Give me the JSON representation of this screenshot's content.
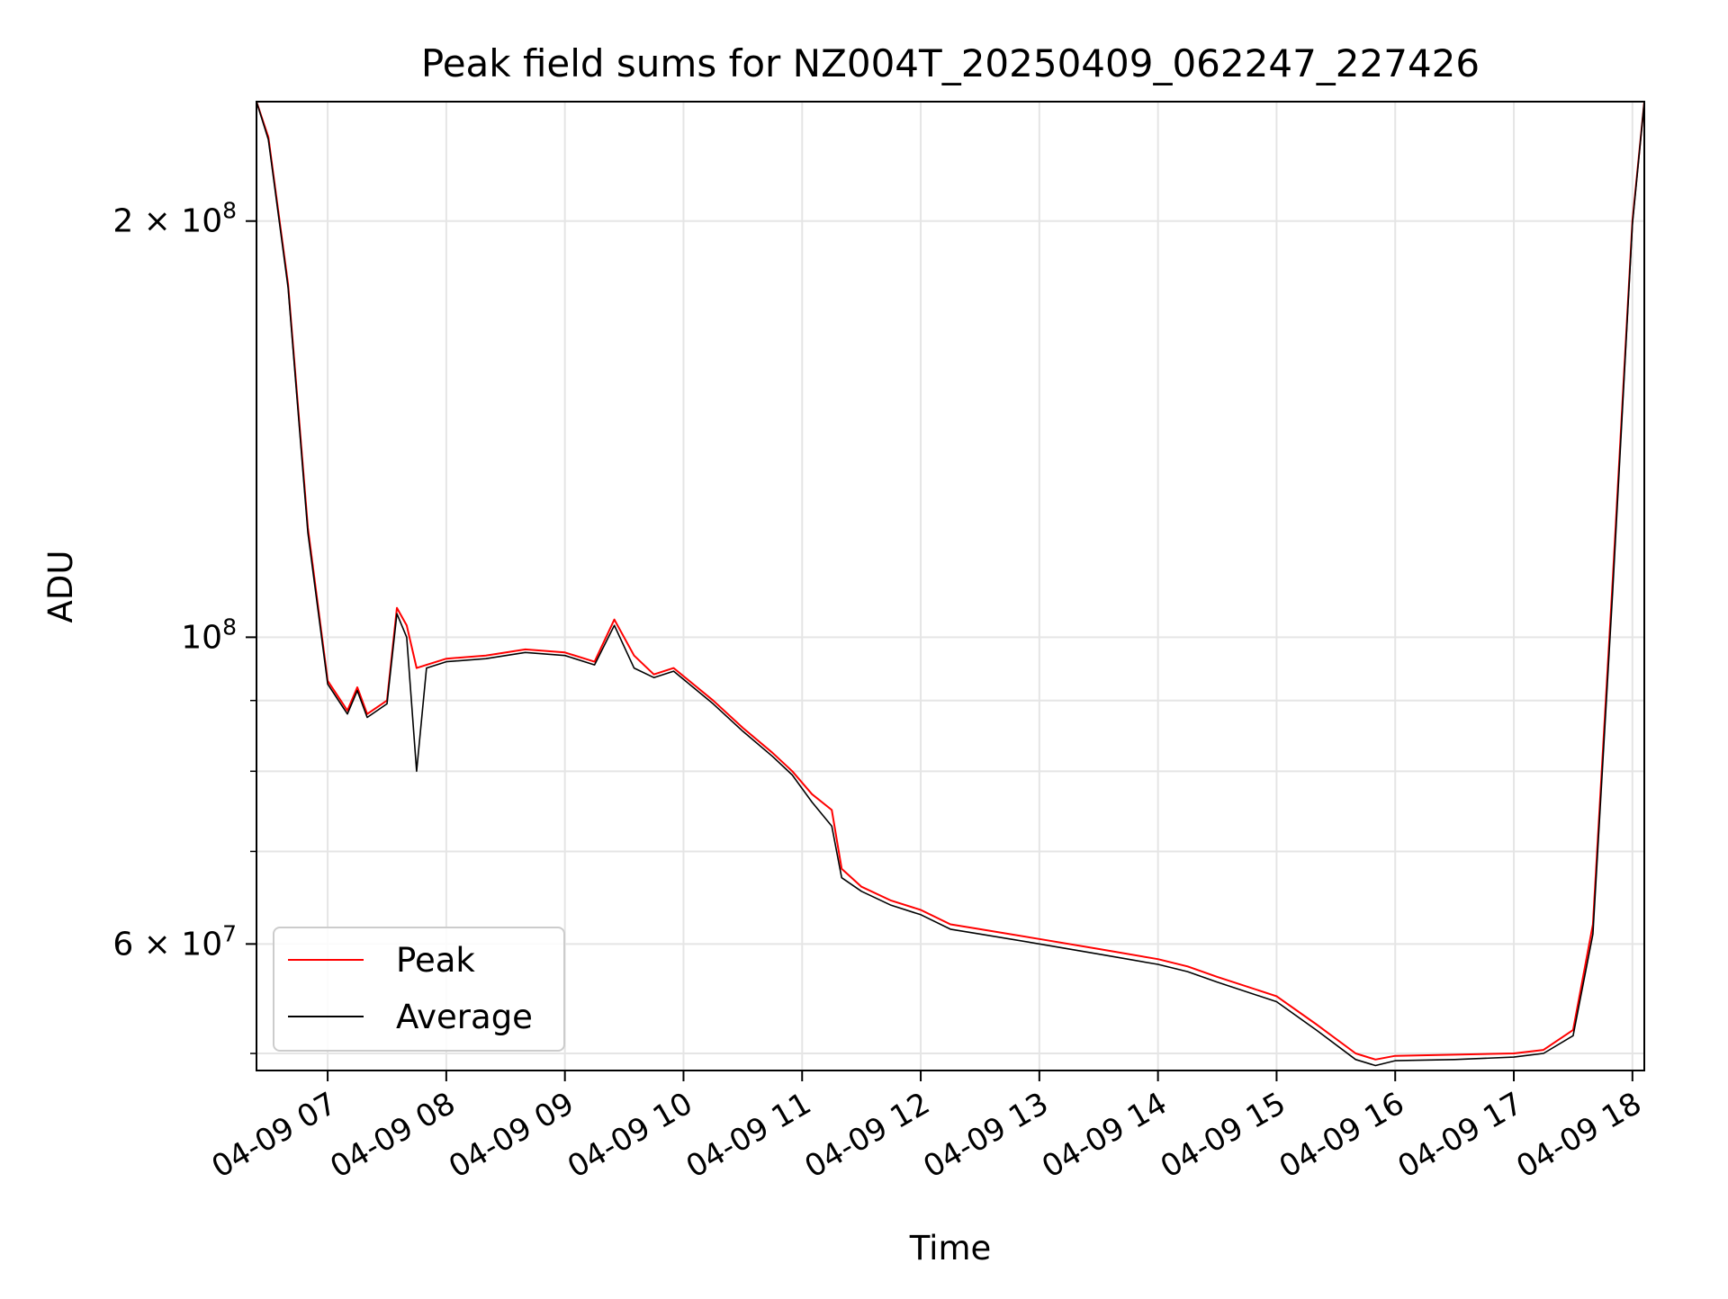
{
  "chart_data": {
    "type": "line",
    "title": "Peak field sums for NZ004T_20250409_062247_227426",
    "xlabel": "Time",
    "ylabel": "ADU",
    "yscale": "log",
    "ylim": [
      48600000,
      244000000
    ],
    "xlim": [
      "2025-04-09 06:24",
      "2025-04-09 18:06"
    ],
    "grid": true,
    "legend_position": "lower-left",
    "xticks": [
      "04-09 07",
      "04-09 08",
      "04-09 09",
      "04-09 10",
      "04-09 11",
      "04-09 12",
      "04-09 13",
      "04-09 14",
      "04-09 15",
      "04-09 16",
      "04-09 17",
      "04-09 18"
    ],
    "xtick_values": [
      "2025-04-09 07:00",
      "2025-04-09 08:00",
      "2025-04-09 09:00",
      "2025-04-09 10:00",
      "2025-04-09 11:00",
      "2025-04-09 12:00",
      "2025-04-09 13:00",
      "2025-04-09 14:00",
      "2025-04-09 15:00",
      "2025-04-09 16:00",
      "2025-04-09 17:00",
      "2025-04-09 18:00"
    ],
    "yticks_major": [
      {
        "value": 60000000,
        "mantissa": "6",
        "times": "×",
        "base": "10",
        "exp": "7"
      },
      {
        "value": 100000000,
        "mantissa": "",
        "times": "",
        "base": "10",
        "exp": "8"
      },
      {
        "value": 200000000,
        "mantissa": "2",
        "times": "×",
        "base": "10",
        "exp": "8"
      }
    ],
    "yticks_minor": [
      50000000,
      70000000,
      80000000,
      90000000
    ],
    "series": [
      {
        "name": "Peak",
        "color": "#ff0000",
        "x": [
          "2025-04-09 06:24",
          "2025-04-09 06:30",
          "2025-04-09 06:40",
          "2025-04-09 06:50",
          "2025-04-09 07:00",
          "2025-04-09 07:10",
          "2025-04-09 07:15",
          "2025-04-09 07:20",
          "2025-04-09 07:30",
          "2025-04-09 07:35",
          "2025-04-09 07:40",
          "2025-04-09 07:45",
          "2025-04-09 07:50",
          "2025-04-09 08:00",
          "2025-04-09 08:20",
          "2025-04-09 08:40",
          "2025-04-09 09:00",
          "2025-04-09 09:15",
          "2025-04-09 09:25",
          "2025-04-09 09:35",
          "2025-04-09 09:45",
          "2025-04-09 09:55",
          "2025-04-09 10:15",
          "2025-04-09 10:30",
          "2025-04-09 10:45",
          "2025-04-09 10:55",
          "2025-04-09 11:05",
          "2025-04-09 11:15",
          "2025-04-09 11:20",
          "2025-04-09 11:30",
          "2025-04-09 11:45",
          "2025-04-09 12:00",
          "2025-04-09 12:15",
          "2025-04-09 12:30",
          "2025-04-09 13:00",
          "2025-04-09 13:30",
          "2025-04-09 14:00",
          "2025-04-09 14:15",
          "2025-04-09 14:30",
          "2025-04-09 15:00",
          "2025-04-09 15:20",
          "2025-04-09 15:40",
          "2025-04-09 15:50",
          "2025-04-09 16:00",
          "2025-04-09 16:30",
          "2025-04-09 17:00",
          "2025-04-09 17:15",
          "2025-04-09 17:30",
          "2025-04-09 17:40",
          "2025-04-09 17:50",
          "2025-04-09 18:00",
          "2025-04-09 18:06"
        ],
        "y": [
          244000000,
          230000000,
          180000000,
          120000000,
          93000000,
          88500000,
          92000000,
          88000000,
          90000000,
          105000000,
          102000000,
          95000000,
          95500000,
          96500000,
          97000000,
          98000000,
          97500000,
          96000000,
          103000000,
          97000000,
          94000000,
          95000000,
          90000000,
          86000000,
          82500000,
          80000000,
          77000000,
          75000000,
          68000000,
          66000000,
          64500000,
          63500000,
          62000000,
          61500000,
          60500000,
          59500000,
          58500000,
          57800000,
          56800000,
          55000000,
          52500000,
          50000000,
          49500000,
          49800000,
          49900000,
          50000000,
          50300000,
          52000000,
          62000000,
          110000000,
          200000000,
          244000000
        ]
      },
      {
        "name": "Average",
        "color": "#000000",
        "x": [
          "2025-04-09 06:24",
          "2025-04-09 06:30",
          "2025-04-09 06:40",
          "2025-04-09 06:50",
          "2025-04-09 07:00",
          "2025-04-09 07:10",
          "2025-04-09 07:15",
          "2025-04-09 07:20",
          "2025-04-09 07:30",
          "2025-04-09 07:35",
          "2025-04-09 07:40",
          "2025-04-09 07:45",
          "2025-04-09 07:50",
          "2025-04-09 08:00",
          "2025-04-09 08:20",
          "2025-04-09 08:40",
          "2025-04-09 09:00",
          "2025-04-09 09:15",
          "2025-04-09 09:25",
          "2025-04-09 09:35",
          "2025-04-09 09:45",
          "2025-04-09 09:55",
          "2025-04-09 10:15",
          "2025-04-09 10:30",
          "2025-04-09 10:45",
          "2025-04-09 10:55",
          "2025-04-09 11:05",
          "2025-04-09 11:15",
          "2025-04-09 11:20",
          "2025-04-09 11:30",
          "2025-04-09 11:45",
          "2025-04-09 12:00",
          "2025-04-09 12:15",
          "2025-04-09 12:30",
          "2025-04-09 13:00",
          "2025-04-09 13:30",
          "2025-04-09 14:00",
          "2025-04-09 14:15",
          "2025-04-09 14:30",
          "2025-04-09 15:00",
          "2025-04-09 15:20",
          "2025-04-09 15:40",
          "2025-04-09 15:50",
          "2025-04-09 16:00",
          "2025-04-09 16:30",
          "2025-04-09 17:00",
          "2025-04-09 17:15",
          "2025-04-09 17:30",
          "2025-04-09 17:40",
          "2025-04-09 17:50",
          "2025-04-09 18:00",
          "2025-04-09 18:06"
        ],
        "y": [
          244000000,
          229000000,
          179000000,
          119000000,
          92500000,
          88000000,
          91500000,
          87500000,
          89500000,
          104000000,
          100000000,
          80000000,
          95000000,
          96000000,
          96500000,
          97500000,
          97000000,
          95500000,
          102000000,
          95000000,
          93500000,
          94500000,
          89500000,
          85500000,
          82000000,
          79500000,
          76000000,
          73000000,
          67000000,
          65500000,
          64000000,
          63000000,
          61500000,
          61000000,
          60000000,
          59000000,
          58000000,
          57300000,
          56300000,
          54500000,
          52000000,
          49500000,
          49000000,
          49400000,
          49500000,
          49700000,
          50000000,
          51500000,
          61000000,
          108000000,
          199000000,
          244000000
        ]
      }
    ]
  }
}
